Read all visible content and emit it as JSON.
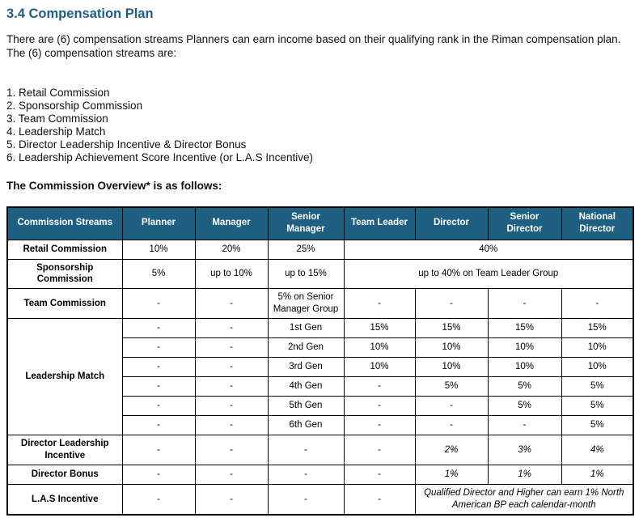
{
  "document": {
    "heading": "3.4 Compensation Plan",
    "intro": "There are (6) compensation streams Planners can earn income based on their qualifying rank in the Riman compensation plan. The (6) compensation streams are:",
    "streams": [
      "1. Retail Commission",
      "2. Sponsorship Commission",
      "3. Team Commission",
      "4. Leadership Match",
      "5. Director Leadership Incentive & Director Bonus",
      "6. Leadership Achievement Score Incentive (or L.A.S Incentive)"
    ],
    "overview_label": "The Commission Overview* is as follows:"
  },
  "colors": {
    "accent": "#1E5F82",
    "header_text": "#FFFFFF",
    "border": "#000000"
  },
  "table": {
    "columns": [
      "Commission Streams",
      "Planner",
      "Manager",
      "Senior Manager",
      "Team Leader",
      "Director",
      "Senior Director",
      "National Director"
    ],
    "rows": [
      {
        "cells": [
          {
            "text": "Retail Commission",
            "label": true
          },
          {
            "text": "10%"
          },
          {
            "text": "20%"
          },
          {
            "text": "25%"
          },
          {
            "text": "40%",
            "colspan": 4
          }
        ]
      },
      {
        "cells": [
          {
            "text": "Sponsorship Commission",
            "label": true
          },
          {
            "text": "5%"
          },
          {
            "text": "up to 10%"
          },
          {
            "text": "up to 15%"
          },
          {
            "text": "up to 40% on Team Leader Group",
            "colspan": 4
          }
        ]
      },
      {
        "cells": [
          {
            "text": "Team Commission",
            "label": true
          },
          {
            "text": "-"
          },
          {
            "text": "-"
          },
          {
            "text": "5% on Senior Manager Group"
          },
          {
            "text": "-"
          },
          {
            "text": "-"
          },
          {
            "text": "-"
          },
          {
            "text": "-"
          }
        ]
      },
      {
        "cells": [
          {
            "text": "Leadership Match",
            "label": true,
            "rowspan": 6
          },
          {
            "text": "-"
          },
          {
            "text": "-"
          },
          {
            "text": "1st Gen"
          },
          {
            "text": "15%"
          },
          {
            "text": "15%"
          },
          {
            "text": "15%"
          },
          {
            "text": "15%"
          }
        ]
      },
      {
        "cells": [
          {
            "text": "-"
          },
          {
            "text": "-"
          },
          {
            "text": "2nd Gen"
          },
          {
            "text": "10%"
          },
          {
            "text": "10%"
          },
          {
            "text": "10%"
          },
          {
            "text": "10%"
          }
        ]
      },
      {
        "cells": [
          {
            "text": "-"
          },
          {
            "text": "-"
          },
          {
            "text": "3rd Gen"
          },
          {
            "text": "10%"
          },
          {
            "text": "10%"
          },
          {
            "text": "10%"
          },
          {
            "text": "10%"
          }
        ]
      },
      {
        "cells": [
          {
            "text": "-"
          },
          {
            "text": "-"
          },
          {
            "text": "4th Gen"
          },
          {
            "text": "-"
          },
          {
            "text": "5%"
          },
          {
            "text": "5%"
          },
          {
            "text": "5%"
          }
        ]
      },
      {
        "cells": [
          {
            "text": "-"
          },
          {
            "text": "-"
          },
          {
            "text": "5th Gen"
          },
          {
            "text": "-"
          },
          {
            "text": "-"
          },
          {
            "text": "5%"
          },
          {
            "text": "5%"
          }
        ]
      },
      {
        "cells": [
          {
            "text": "-"
          },
          {
            "text": "-"
          },
          {
            "text": "6th Gen"
          },
          {
            "text": "-"
          },
          {
            "text": "-"
          },
          {
            "text": "-"
          },
          {
            "text": "5%"
          }
        ]
      },
      {
        "cells": [
          {
            "text": "Director Leadership Incentive",
            "label": true
          },
          {
            "text": "-"
          },
          {
            "text": "-"
          },
          {
            "text": "-"
          },
          {
            "text": "-"
          },
          {
            "text": "2%",
            "italic": true
          },
          {
            "text": "3%",
            "italic": true
          },
          {
            "text": "4%",
            "italic": true
          }
        ]
      },
      {
        "cells": [
          {
            "text": "Director Bonus",
            "label": true
          },
          {
            "text": "-"
          },
          {
            "text": "-"
          },
          {
            "text": "-"
          },
          {
            "text": "-"
          },
          {
            "text": "1%",
            "italic": true
          },
          {
            "text": "1%",
            "italic": true
          },
          {
            "text": "1%",
            "italic": true
          }
        ]
      },
      {
        "cells": [
          {
            "text": "L.A.S Incentive",
            "label": true
          },
          {
            "text": "-"
          },
          {
            "text": "-"
          },
          {
            "text": "-"
          },
          {
            "text": "-"
          },
          {
            "text": "Qualified Director and Higher can earn 1% North American BP each calendar-month",
            "colspan": 3,
            "italic": true
          }
        ]
      }
    ]
  }
}
